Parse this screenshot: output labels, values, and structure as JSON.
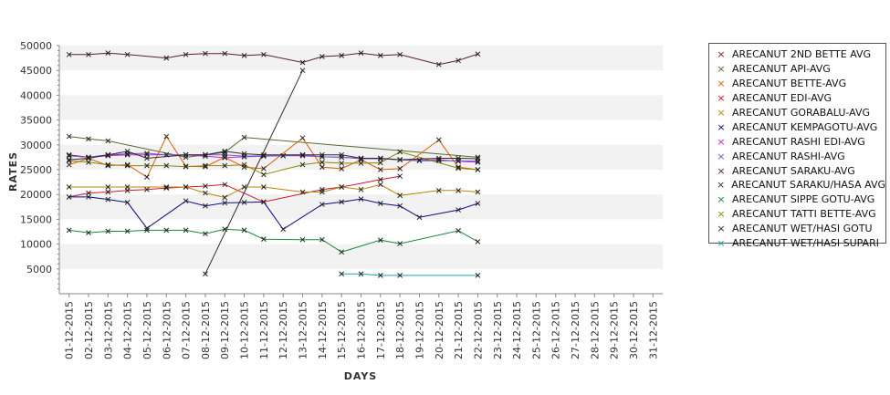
{
  "chart_data": {
    "type": "line",
    "title": "",
    "xlabel": "DAYS",
    "ylabel": "RATES",
    "ylim": [
      0,
      50000
    ],
    "y_ticks": [
      "5000",
      "10000",
      "15000",
      "20000",
      "25000",
      "30000",
      "35000",
      "40000",
      "45000",
      "50000"
    ],
    "categories": [
      "01-12-2015",
      "02-12-2015",
      "03-12-2015",
      "04-12-2015",
      "05-12-2015",
      "06-12-2015",
      "07-12-2015",
      "08-12-2015",
      "09-12-2015",
      "10-12-2015",
      "11-12-2015",
      "12-12-2015",
      "13-12-2015",
      "14-12-2015",
      "15-12-2015",
      "16-12-2015",
      "17-12-2015",
      "18-12-2015",
      "19-12-2015",
      "20-12-2015",
      "21-12-2015",
      "22-12-2015",
      "23-12-2015",
      "24-12-2015",
      "25-12-2015",
      "26-12-2015",
      "27-12-2015",
      "28-12-2015",
      "29-12-2015",
      "30-12-2015",
      "31-12-2015"
    ],
    "grid": "horizontal alternating bands",
    "legend_position": "right",
    "series": [
      {
        "name": "ARECANUT 2ND BETTE AVG",
        "color": "#8b1a1a",
        "values": [
          28000,
          27500,
          28000,
          28000,
          null,
          null,
          null,
          null,
          null,
          null,
          null,
          null,
          null,
          null,
          null,
          null,
          null,
          null,
          null,
          null,
          null,
          null,
          null,
          null,
          null,
          null,
          null,
          null,
          null,
          null,
          null
        ]
      },
      {
        "name": "ARECANUT API-AVG",
        "color": "#556b2f",
        "values": [
          31700,
          31200,
          30800,
          null,
          null,
          null,
          27500,
          28000,
          28500,
          31500,
          null,
          null,
          null,
          null,
          null,
          null,
          null,
          null,
          null,
          null,
          null,
          27500,
          null,
          null,
          null,
          null,
          null,
          null,
          null,
          null,
          null
        ]
      },
      {
        "name": "ARECANUT BETTE-AVG",
        "color": "#e05a00",
        "values": [
          26000,
          27300,
          25800,
          26000,
          23500,
          31700,
          25700,
          25600,
          27500,
          25500,
          25200,
          null,
          31400,
          25500,
          25200,
          27000,
          25000,
          25200,
          null,
          31000,
          25500,
          25000,
          null,
          null,
          null,
          null,
          null,
          null,
          null,
          null,
          null
        ]
      },
      {
        "name": "ARECANUT EDI-AVG",
        "color": "#d4162b",
        "values": [
          19500,
          20300,
          20500,
          20800,
          21000,
          21300,
          21500,
          21700,
          22000,
          null,
          18500,
          null,
          null,
          21000,
          21500,
          null,
          23000,
          23700,
          null,
          null,
          null,
          null,
          null,
          null,
          null,
          null,
          null,
          null,
          null,
          null,
          null
        ]
      },
      {
        "name": "ARECANUT GORABALU-AVG",
        "color": "#b8860b",
        "values": [
          21500,
          null,
          21500,
          21500,
          null,
          21500,
          21500,
          20300,
          19400,
          21500,
          21500,
          null,
          20500,
          20500,
          21500,
          21000,
          22000,
          19800,
          null,
          20800,
          20800,
          20500,
          null,
          null,
          null,
          null,
          null,
          null,
          null,
          null,
          null
        ]
      },
      {
        "name": "ARECANUT KEMPAGOTU-AVG",
        "color": "#0a0a8a",
        "values": [
          19500,
          19500,
          19000,
          18400,
          13200,
          null,
          18700,
          17700,
          18300,
          18400,
          18500,
          13000,
          null,
          18000,
          18500,
          19100,
          18200,
          17700,
          15400,
          null,
          16900,
          18200,
          null,
          null,
          null,
          null,
          null,
          null,
          null,
          null,
          null
        ]
      },
      {
        "name": "ARECANUT RASHI EDI-AVG",
        "color": "#cc22cc",
        "values": [
          27800,
          27500,
          27800,
          28000,
          28000,
          28000,
          28000,
          27700,
          27400,
          27600,
          27700,
          27800,
          27800,
          27600,
          27500,
          27200,
          27200,
          27000,
          26900,
          27000,
          26700,
          26500,
          null,
          null,
          null,
          null,
          null,
          null,
          null,
          null,
          null
        ]
      },
      {
        "name": "ARECANUT RASHI-AVG",
        "color": "#6a5acd",
        "values": [
          27800,
          27500,
          28000,
          28200,
          28300,
          28000,
          28000,
          28000,
          28000,
          27700,
          27800,
          27800,
          28000,
          27600,
          27500,
          27300,
          27200,
          27000,
          26800,
          26800,
          26800,
          26700,
          null,
          null,
          null,
          null,
          null,
          null,
          null,
          null,
          null
        ]
      },
      {
        "name": "ARECANUT SARAKU-AVG",
        "color": "#5a1e2e",
        "values": [
          48200,
          48200,
          48500,
          48200,
          null,
          47500,
          48200,
          48400,
          48400,
          48000,
          48200,
          null,
          46600,
          47800,
          48000,
          48500,
          48000,
          48200,
          null,
          46200,
          47000,
          48300,
          null,
          null,
          null,
          null,
          null,
          null,
          null,
          null,
          null
        ]
      },
      {
        "name": "ARECANUT SARAKU/HASA AVG",
        "color": "#3a2a2a",
        "values": [
          null,
          null,
          null,
          null,
          null,
          null,
          null,
          4000,
          null,
          null,
          null,
          null,
          45000,
          null,
          null,
          null,
          null,
          null,
          null,
          null,
          null,
          null,
          null,
          null,
          null,
          null,
          null,
          null,
          null,
          null,
          null
        ]
      },
      {
        "name": "ARECANUT SIPPE GOTU-AVG",
        "color": "#1a8a3a",
        "values": [
          12800,
          12300,
          12600,
          12600,
          12800,
          12800,
          12800,
          12100,
          13000,
          12800,
          11000,
          null,
          10900,
          10900,
          8400,
          null,
          10800,
          10100,
          null,
          null,
          12700,
          10500,
          null,
          null,
          null,
          null,
          null,
          null,
          null,
          null,
          null
        ]
      },
      {
        "name": "ARECANUT TATTI BETTE-AVG",
        "color": "#8a8a00",
        "values": [
          26800,
          26500,
          26000,
          25800,
          25800,
          25800,
          25600,
          25800,
          25800,
          26000,
          24000,
          null,
          26000,
          26500,
          26300,
          26300,
          26400,
          28600,
          null,
          null,
          25300,
          25000,
          null,
          null,
          null,
          null,
          null,
          null,
          null,
          null,
          null
        ]
      },
      {
        "name": "ARECANUT WET/HASI GOTU",
        "color": "#2a2a2a",
        "values": [
          27000,
          27300,
          28000,
          28700,
          27300,
          null,
          28000,
          28000,
          28700,
          28200,
          28000,
          null,
          28000,
          28000,
          28000,
          27300,
          27300,
          27000,
          null,
          27300,
          27300,
          27200,
          null,
          null,
          null,
          null,
          null,
          null,
          null,
          null,
          null
        ]
      },
      {
        "name": "ARECANUT WET/HASI SUPARI",
        "color": "#1aa6a6",
        "values": [
          null,
          null,
          null,
          null,
          null,
          null,
          null,
          null,
          null,
          null,
          null,
          null,
          null,
          null,
          4000,
          4000,
          3700,
          3700,
          null,
          null,
          null,
          3700,
          null,
          null,
          null,
          null,
          null,
          null,
          null,
          null,
          null
        ]
      }
    ]
  }
}
